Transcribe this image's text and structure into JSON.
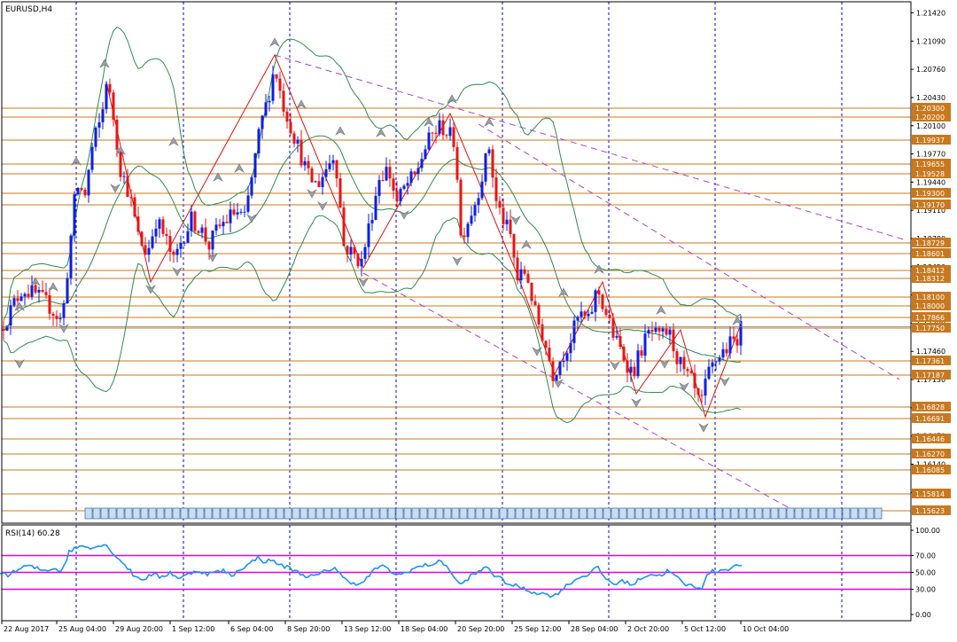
{
  "chart_data": [
    {
      "type": "candlestick",
      "title": "EURUSD,H4",
      "ylim": [
        1.1545,
        1.2155
      ],
      "y_ticks": [
        "1.21420",
        "1.21090",
        "1.20760",
        "1.20430",
        "1.20100",
        "1.19770",
        "1.19440",
        "1.19110",
        "1.18780",
        "1.18450",
        "1.18120",
        "1.17790",
        "1.17460",
        "1.17130",
        "1.16800",
        "1.16470",
        "1.16140",
        "1.15810"
      ],
      "x_ticks": [
        "22 Aug 2017",
        "25 Aug 04:00",
        "29 Aug 20:00",
        "1 Sep 12:00",
        "6 Sep 04:00",
        "8 Sep 20:00",
        "13 Sep 12:00",
        "18 Sep 04:00",
        "20 Sep 20:00",
        "25 Sep 12:00",
        "28 Sep 04:00",
        "2 Oct 20:00",
        "5 Oct 12:00",
        "10 Oct 04:00"
      ],
      "level_labels": [
        "1.20300",
        "1.20200",
        "1.19937",
        "1.19655",
        "1.19528",
        "1.19300",
        "1.19170",
        "1.18729",
        "1.18601",
        "1.18412",
        "1.18312",
        "1.18100",
        "1.18000",
        "1.17866",
        "1.17750",
        "1.17361",
        "1.17187",
        "1.16828",
        "1.16691",
        "1.16446",
        "1.16270",
        "1.16085",
        "1.15814",
        "1.15623"
      ],
      "price_path": [
        [
          0,
          1.1772
        ],
        [
          10,
          1.179
        ],
        [
          25,
          1.182
        ],
        [
          40,
          1.1812
        ],
        [
          55,
          1.18
        ],
        [
          70,
          1.178
        ],
        [
          78,
          1.186
        ],
        [
          86,
          1.194
        ],
        [
          96,
          1.193
        ],
        [
          105,
          1.199
        ],
        [
          115,
          1.202
        ],
        [
          120,
          1.2065
        ],
        [
          128,
          1.202
        ],
        [
          136,
          1.196
        ],
        [
          146,
          1.193
        ],
        [
          156,
          1.188
        ],
        [
          166,
          1.186
        ],
        [
          176,
          1.19
        ],
        [
          186,
          1.188
        ],
        [
          196,
          1.185
        ],
        [
          206,
          1.188
        ],
        [
          216,
          1.19
        ],
        [
          226,
          1.189
        ],
        [
          236,
          1.187
        ],
        [
          246,
          1.189
        ],
        [
          256,
          1.19
        ],
        [
          266,
          1.191
        ],
        [
          276,
          1.19
        ],
        [
          286,
          1.196
        ],
        [
          294,
          1.201
        ],
        [
          302,
          1.204
        ],
        [
          310,
          1.208
        ],
        [
          318,
          1.204
        ],
        [
          328,
          1.201
        ],
        [
          338,
          1.198
        ],
        [
          348,
          1.195
        ],
        [
          358,
          1.194
        ],
        [
          368,
          1.196
        ],
        [
          378,
          1.198
        ],
        [
          388,
          1.187
        ],
        [
          398,
          1.186
        ],
        [
          408,
          1.185
        ],
        [
          418,
          1.19
        ],
        [
          428,
          1.195
        ],
        [
          438,
          1.196
        ],
        [
          448,
          1.192
        ],
        [
          458,
          1.194
        ],
        [
          468,
          1.195
        ],
        [
          478,
          1.198
        ],
        [
          488,
          1.2
        ],
        [
          498,
          1.201
        ],
        [
          506,
          1.2
        ],
        [
          514,
          1.199
        ],
        [
          520,
          1.188
        ],
        [
          528,
          1.19
        ],
        [
          536,
          1.192
        ],
        [
          546,
          1.196
        ],
        [
          552,
          1.1985
        ],
        [
          560,
          1.192
        ],
        [
          568,
          1.19
        ],
        [
          576,
          1.188
        ],
        [
          584,
          1.183
        ],
        [
          594,
          1.184
        ],
        [
          604,
          1.179
        ],
        [
          614,
          1.176
        ],
        [
          624,
          1.172
        ],
        [
          634,
          1.174
        ],
        [
          644,
          1.176
        ],
        [
          654,
          1.179
        ],
        [
          664,
          1.178
        ],
        [
          674,
          1.182
        ],
        [
          684,
          1.179
        ],
        [
          694,
          1.176
        ],
        [
          704,
          1.174
        ],
        [
          714,
          1.172
        ],
        [
          724,
          1.175
        ],
        [
          734,
          1.177
        ],
        [
          744,
          1.176
        ],
        [
          754,
          1.177
        ],
        [
          764,
          1.174
        ],
        [
          772,
          1.172
        ],
        [
          780,
          1.171
        ],
        [
          790,
          1.168
        ],
        [
          800,
          1.172
        ],
        [
          810,
          1.174
        ],
        [
          820,
          1.175
        ],
        [
          830,
          1.176
        ],
        [
          838,
          1.1775
        ]
      ]
    },
    {
      "type": "line",
      "title": "RSI(14) 60.28",
      "ylim": [
        0,
        100
      ],
      "y_ticks": [
        "100.00",
        "70.00",
        "50.00",
        "30.00",
        "0.00"
      ],
      "levels": [
        70,
        50,
        30
      ],
      "rsi_path": [
        [
          0,
          50
        ],
        [
          10,
          47
        ],
        [
          20,
          53
        ],
        [
          30,
          58
        ],
        [
          40,
          55
        ],
        [
          50,
          52
        ],
        [
          60,
          55
        ],
        [
          70,
          52
        ],
        [
          78,
          74
        ],
        [
          86,
          80
        ],
        [
          96,
          82
        ],
        [
          106,
          79
        ],
        [
          116,
          84
        ],
        [
          124,
          78
        ],
        [
          132,
          68
        ],
        [
          142,
          58
        ],
        [
          152,
          45
        ],
        [
          162,
          42
        ],
        [
          172,
          48
        ],
        [
          182,
          44
        ],
        [
          192,
          50
        ],
        [
          202,
          43
        ],
        [
          212,
          47
        ],
        [
          222,
          53
        ],
        [
          232,
          48
        ],
        [
          242,
          50
        ],
        [
          252,
          52
        ],
        [
          262,
          46
        ],
        [
          272,
          55
        ],
        [
          282,
          60
        ],
        [
          290,
          68
        ],
        [
          298,
          63
        ],
        [
          308,
          64
        ],
        [
          318,
          58
        ],
        [
          328,
          55
        ],
        [
          338,
          49
        ],
        [
          348,
          45
        ],
        [
          358,
          46
        ],
        [
          368,
          52
        ],
        [
          378,
          56
        ],
        [
          388,
          42
        ],
        [
          398,
          38
        ],
        [
          408,
          36
        ],
        [
          418,
          48
        ],
        [
          428,
          58
        ],
        [
          438,
          54
        ],
        [
          448,
          46
        ],
        [
          458,
          50
        ],
        [
          468,
          55
        ],
        [
          478,
          58
        ],
        [
          488,
          60
        ],
        [
          498,
          63
        ],
        [
          506,
          56
        ],
        [
          514,
          40
        ],
        [
          522,
          36
        ],
        [
          530,
          45
        ],
        [
          540,
          50
        ],
        [
          550,
          58
        ],
        [
          558,
          46
        ],
        [
          566,
          42
        ],
        [
          576,
          35
        ],
        [
          586,
          33
        ],
        [
          596,
          28
        ],
        [
          606,
          26
        ],
        [
          616,
          24
        ],
        [
          626,
          22
        ],
        [
          634,
          30
        ],
        [
          644,
          38
        ],
        [
          654,
          44
        ],
        [
          664,
          48
        ],
        [
          674,
          56
        ],
        [
          684,
          42
        ],
        [
          694,
          36
        ],
        [
          704,
          40
        ],
        [
          714,
          35
        ],
        [
          724,
          44
        ],
        [
          734,
          48
        ],
        [
          744,
          46
        ],
        [
          754,
          52
        ],
        [
          764,
          44
        ],
        [
          772,
          36
        ],
        [
          782,
          34
        ],
        [
          792,
          32
        ],
        [
          800,
          50
        ],
        [
          810,
          52
        ],
        [
          820,
          54
        ],
        [
          830,
          57
        ],
        [
          838,
          60.28
        ]
      ]
    }
  ]
}
